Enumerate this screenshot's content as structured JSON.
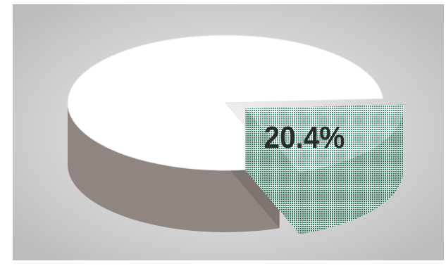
{
  "chart_data": {
    "type": "pie",
    "style": "3d-exploded",
    "slices": [
      {
        "value": 79.6,
        "label": "",
        "color": "#ffffff",
        "side_color": "#8f8581"
      },
      {
        "value": 20.4,
        "label": "20.4%",
        "color": "#4f9a7e",
        "side_color": "#3a7a5e",
        "pattern": "dotted",
        "exploded": true
      }
    ],
    "background": {
      "center": "#f5f5f5",
      "edge": "#bcbcbc"
    },
    "label_color": "#2b2b2b"
  }
}
